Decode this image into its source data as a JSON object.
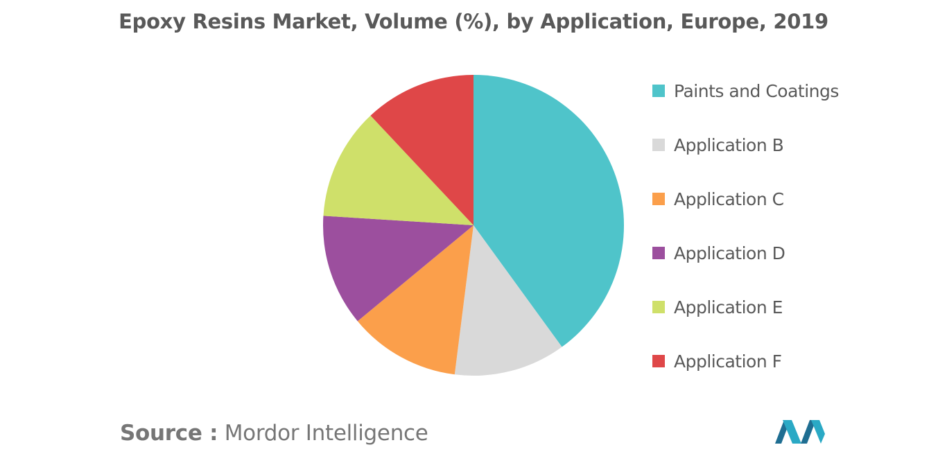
{
  "title": "Epoxy Resins Market, Volume (%), by Application, Europe, 2019",
  "source": {
    "prefix": "Source :",
    "name": "Mordor Intelligence"
  },
  "chart_data": {
    "type": "pie",
    "title": "Epoxy Resins Market, Volume (%), by Application, Europe, 2019",
    "legend_position": "right",
    "start_angle": "12 o'clock",
    "direction": "clockwise",
    "series": [
      {
        "name": "Paints and Coatings",
        "value": 40,
        "color": "#4fc4ca"
      },
      {
        "name": "Application B",
        "value": 12,
        "color": "#d9d9d9"
      },
      {
        "name": "Application C",
        "value": 12,
        "color": "#fb9f4b"
      },
      {
        "name": "Application D",
        "value": 12,
        "color": "#9c4f9e"
      },
      {
        "name": "Application E",
        "value": 12,
        "color": "#cfe06a"
      },
      {
        "name": "Application F",
        "value": 12,
        "color": "#df4748"
      }
    ]
  }
}
